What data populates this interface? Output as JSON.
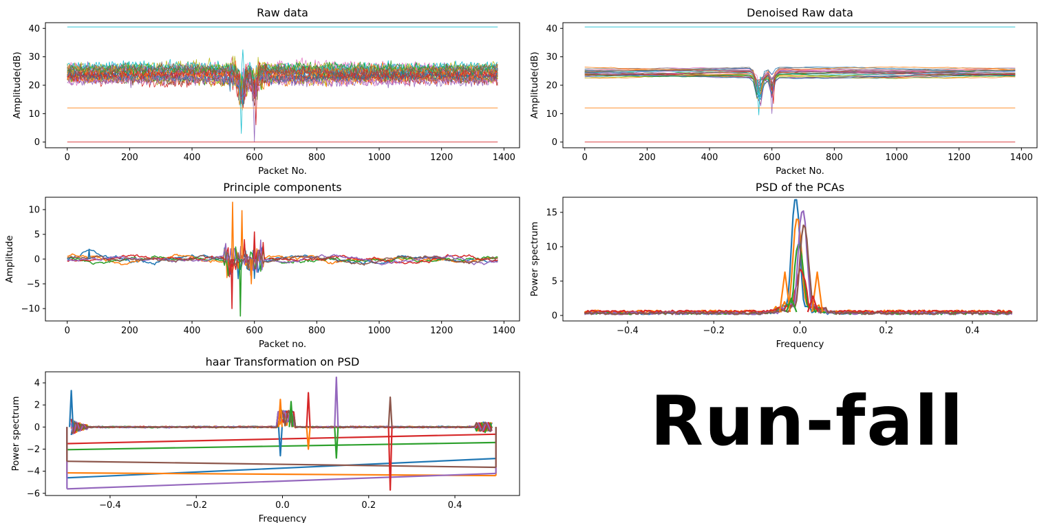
{
  "label_text": "Run-fall",
  "palette": [
    "#1f77b4",
    "#ff7f0e",
    "#2ca02c",
    "#d62728",
    "#9467bd",
    "#8c564b",
    "#e377c2",
    "#7f7f7f",
    "#bcbd22",
    "#17becf"
  ],
  "chart_data": [
    {
      "type": "line",
      "title": "Raw data",
      "xlabel": "Packet No.",
      "ylabel": "Amplitude(dB)",
      "xlim": [
        -70,
        1450
      ],
      "ylim": [
        -2,
        42
      ],
      "xticks": [
        0,
        200,
        400,
        600,
        800,
        1000,
        1200,
        1400
      ],
      "yticks": [
        0,
        10,
        20,
        30,
        40
      ],
      "xtick_labels": [
        "0",
        "200",
        "400",
        "600",
        "800",
        "1000",
        "1200",
        "1400"
      ],
      "ytick_labels": [
        "0",
        "10",
        "20",
        "30",
        "40"
      ],
      "grid": false,
      "x_range": [
        0,
        1380
      ],
      "constant_series": [
        {
          "value": 40.5
        },
        {
          "value": 12
        },
        {
          "value": 0
        }
      ],
      "band": [
        20,
        28
      ],
      "dip_region": [
        520,
        640
      ],
      "min_value": 0,
      "max_value": 32.5
    },
    {
      "type": "line",
      "title": "Denoised Raw data",
      "xlabel": "Packet No.",
      "ylabel": "Amplitude(dB)",
      "xlim": [
        -70,
        1450
      ],
      "ylim": [
        -2,
        42
      ],
      "xticks": [
        0,
        200,
        400,
        600,
        800,
        1000,
        1200,
        1400
      ],
      "yticks": [
        0,
        10,
        20,
        30,
        40
      ],
      "xtick_labels": [
        "0",
        "200",
        "400",
        "600",
        "800",
        "1000",
        "1200",
        "1400"
      ],
      "ytick_labels": [
        "0",
        "10",
        "20",
        "30",
        "40"
      ],
      "grid": false,
      "x_range": [
        0,
        1380
      ],
      "constant_series": [
        {
          "value": 40.5
        },
        {
          "value": 12
        },
        {
          "value": 0
        }
      ],
      "band": [
        21.5,
        27.5
      ],
      "dip_region": [
        520,
        640
      ],
      "min_value": 9.5,
      "max_value": 28
    },
    {
      "type": "line",
      "title": "Principle components",
      "xlabel": "Packet no.",
      "ylabel": "Amplitude",
      "xlim": [
        -70,
        1450
      ],
      "ylim": [
        -12.5,
        12.5
      ],
      "xticks": [
        0,
        200,
        400,
        600,
        800,
        1000,
        1200,
        1400
      ],
      "yticks": [
        -10,
        -5,
        0,
        5,
        10
      ],
      "xtick_labels": [
        "0",
        "200",
        "400",
        "600",
        "800",
        "1000",
        "1200",
        "1400"
      ],
      "ytick_labels": [
        "−10",
        "−5",
        "0",
        "5",
        "10"
      ],
      "grid": false,
      "n_series": 6,
      "peaks": [
        {
          "x": 530,
          "y": 11.5,
          "s": 1
        },
        {
          "x": 528,
          "y": -10,
          "s": 3
        },
        {
          "x": 555,
          "y": -11.5,
          "s": 2
        },
        {
          "x": 560,
          "y": 9.8,
          "s": 1
        },
        {
          "x": 590,
          "y": -5,
          "s": 1
        },
        {
          "x": 600,
          "y": 5.5,
          "s": 3
        },
        {
          "x": 70,
          "y": 2,
          "s": 0
        }
      ]
    },
    {
      "type": "line",
      "title": "PSD of the PCAs",
      "xlabel": "Frequency",
      "ylabel": "Power spectrum",
      "xlim": [
        -0.55,
        0.55
      ],
      "ylim": [
        -0.8,
        17.2
      ],
      "xticks": [
        -0.4,
        -0.2,
        0.0,
        0.2,
        0.4
      ],
      "yticks": [
        0,
        5,
        10,
        15
      ],
      "xtick_labels": [
        "−0.4",
        "−0.2",
        "0.0",
        "0.2",
        "0.4"
      ],
      "ytick_labels": [
        "0",
        "5",
        "10",
        "15"
      ],
      "grid": false,
      "peak_heights": [
        16.5,
        13,
        9.5,
        5.5,
        14.8,
        12.5
      ],
      "side_lobes": [
        {
          "x": -0.035,
          "y": 6.3,
          "s": 1
        },
        {
          "x": 0.04,
          "y": 6.3,
          "s": 1
        },
        {
          "x": -0.02,
          "y": 2.5,
          "s": 2
        },
        {
          "x": 0.03,
          "y": 2.8,
          "s": 3
        }
      ]
    },
    {
      "type": "line",
      "title": "haar Transformation on PSD",
      "xlabel": "Frequency",
      "ylabel": "Power spectrum",
      "xlim": [
        -0.55,
        0.55
      ],
      "ylim": [
        -6.2,
        5
      ],
      "xticks": [
        -0.4,
        -0.2,
        0.0,
        0.2,
        0.4
      ],
      "yticks": [
        -6,
        -4,
        -2,
        0,
        2,
        4
      ],
      "xtick_labels": [
        "−0.4",
        "−0.2",
        "0.0",
        "0.2",
        "0.4"
      ],
      "ytick_labels": [
        "−6",
        "−4",
        "−2",
        "0",
        "2",
        "4"
      ],
      "grid": false,
      "trend_lines": [
        {
          "s": 0,
          "y0": -4.6,
          "y1": -2.85
        },
        {
          "s": 1,
          "y0": -4.15,
          "y1": -4.4
        },
        {
          "s": 2,
          "y0": -2.05,
          "y1": -1.4
        },
        {
          "s": 3,
          "y0": -1.5,
          "y1": -0.65
        },
        {
          "s": 4,
          "y0": -5.6,
          "y1": -4.2
        },
        {
          "s": 5,
          "y0": -3.1,
          "y1": -3.65
        }
      ],
      "spikes": [
        {
          "x": -0.49,
          "y": 3.3
        },
        {
          "x": -0.005,
          "y": 2.5
        },
        {
          "x": 0.02,
          "y": 2.3
        },
        {
          "x": 0.06,
          "y": 3.1
        },
        {
          "x": 0.125,
          "y": 4.5
        },
        {
          "x": 0.25,
          "y": 2.7
        },
        {
          "x": -0.005,
          "y": -2.6
        },
        {
          "x": 0.06,
          "y": -2.0
        },
        {
          "x": 0.125,
          "y": -2.8
        },
        {
          "x": 0.25,
          "y": -5.7
        }
      ]
    }
  ]
}
